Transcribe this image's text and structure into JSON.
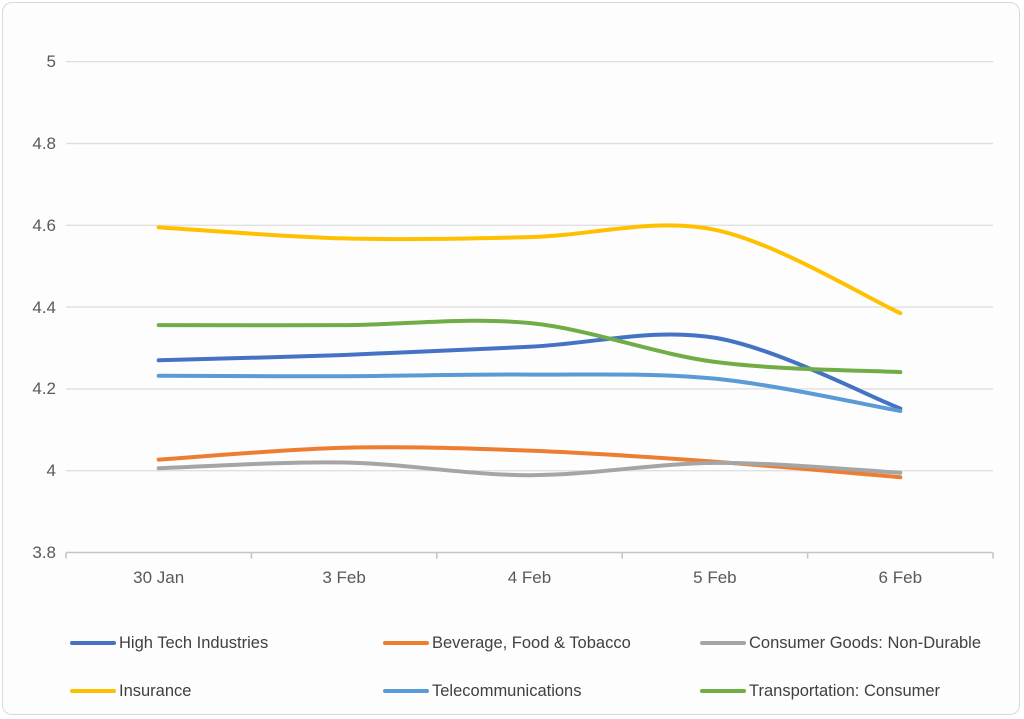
{
  "chart_data": {
    "type": "line",
    "smooth": true,
    "title": "",
    "xlabel": "",
    "ylabel": "",
    "categories": [
      "30 Jan",
      "3 Feb",
      "4 Feb",
      "5 Feb",
      "6 Feb"
    ],
    "series": [
      {
        "name": "High Tech Industries",
        "color": "#4472C4",
        "values": [
          4.27,
          4.283,
          4.303,
          4.325,
          4.152
        ]
      },
      {
        "name": "Beverage, Food & Tobacco",
        "color": "#ED7D31",
        "values": [
          4.027,
          4.056,
          4.049,
          4.022,
          3.984
        ]
      },
      {
        "name": "Consumer Goods: Non-Durable",
        "color": "#A5A5A5",
        "values": [
          4.006,
          4.02,
          3.989,
          4.019,
          3.995
        ]
      },
      {
        "name": "Insurance",
        "color": "#FFC000",
        "values": [
          4.595,
          4.568,
          4.571,
          4.589,
          4.385
        ]
      },
      {
        "name": "Telecommunications",
        "color": "#5B9BD5",
        "values": [
          4.232,
          4.231,
          4.235,
          4.225,
          4.146
        ]
      },
      {
        "name": "Transportation: Consumer",
        "color": "#70AD47",
        "values": [
          4.356,
          4.356,
          4.361,
          4.266,
          4.241
        ]
      }
    ],
    "y_tick_labels": [
      "5",
      "4.8",
      "4.6",
      "4.4",
      "4.2",
      "4",
      "3.8"
    ],
    "y_tick_values": [
      5,
      4.8,
      4.6,
      4.4,
      4.2,
      4,
      3.8
    ],
    "ylim": [
      3.8,
      5.0
    ],
    "grid": true,
    "gridline_color": "#E0E0E0",
    "axis_line_color": "#C6C6C6",
    "axis_label_color": "#595959",
    "legend_position": "bottom",
    "legend_text_color": "#404040",
    "legend_rows": [
      [
        "High Tech Industries",
        "Beverage, Food & Tobacco",
        "Consumer Goods: Non-Durable"
      ],
      [
        "Insurance",
        "Telecommunications",
        "Transportation: Consumer"
      ]
    ]
  }
}
